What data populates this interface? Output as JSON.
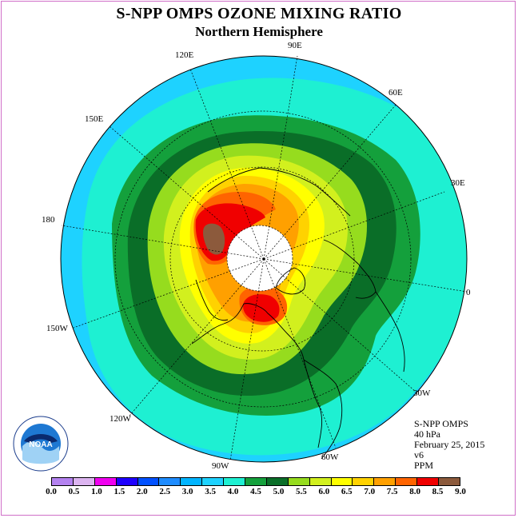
{
  "title": "S-NPP OMPS OZONE MIXING RATIO",
  "subtitle": "Northern Hemisphere",
  "longitude_labels": {
    "lon_90e": "90E",
    "lon_60e": "60E",
    "lon_30e": "30E",
    "lon_0": "0",
    "lon_30w": "30W",
    "lon_60w": "60W",
    "lon_90w": "90W",
    "lon_120w": "120W",
    "lon_150w": "150W",
    "lon_180": "180",
    "lon_150e": "150E",
    "lon_120e": "120E"
  },
  "info": {
    "instrument": "S-NPP OMPS",
    "level": "40 hPa",
    "date": "February 25, 2015",
    "version": "v6",
    "units": "PPM"
  },
  "logo": {
    "text": "NOAA",
    "ring_text": "NATIONAL OCEANIC AND ATMOSPHERIC ADMINISTRATION · U.S. DEPARTMENT OF COMMERCE"
  },
  "colorbar": {
    "ticks": [
      "0.0",
      "0.5",
      "1.0",
      "1.5",
      "2.0",
      "2.5",
      "3.0",
      "3.5",
      "4.0",
      "4.5",
      "5.0",
      "5.5",
      "6.0",
      "6.5",
      "7.0",
      "7.5",
      "8.0",
      "8.5",
      "9.0"
    ],
    "colors": [
      "#b482f0",
      "#dcb4f0",
      "#f000f0",
      "#1e00ff",
      "#0050ff",
      "#1e8cff",
      "#00b4ff",
      "#1ed2ff",
      "#1ef0d2",
      "#14a03c",
      "#0a6e28",
      "#96dc1e",
      "#d2f01e",
      "#ffff00",
      "#ffd200",
      "#ffa000",
      "#ff6400",
      "#f00000",
      "#8c5a3c"
    ]
  },
  "map_colors": {
    "outer": "#1ed2ff",
    "ring_cyan": "#1ef0d2",
    "ring_green": "#14a03c",
    "ring_darkgreen": "#0a6e28",
    "yellowgreen": "#96dc1e",
    "lime": "#d2f01e",
    "yellow": "#ffff00",
    "gold": "#ffd200",
    "orange": "#ffa000",
    "redorange": "#ff6400",
    "red": "#f00000",
    "brown": "#8c5a3c",
    "pole_hole": "#ffffff"
  }
}
